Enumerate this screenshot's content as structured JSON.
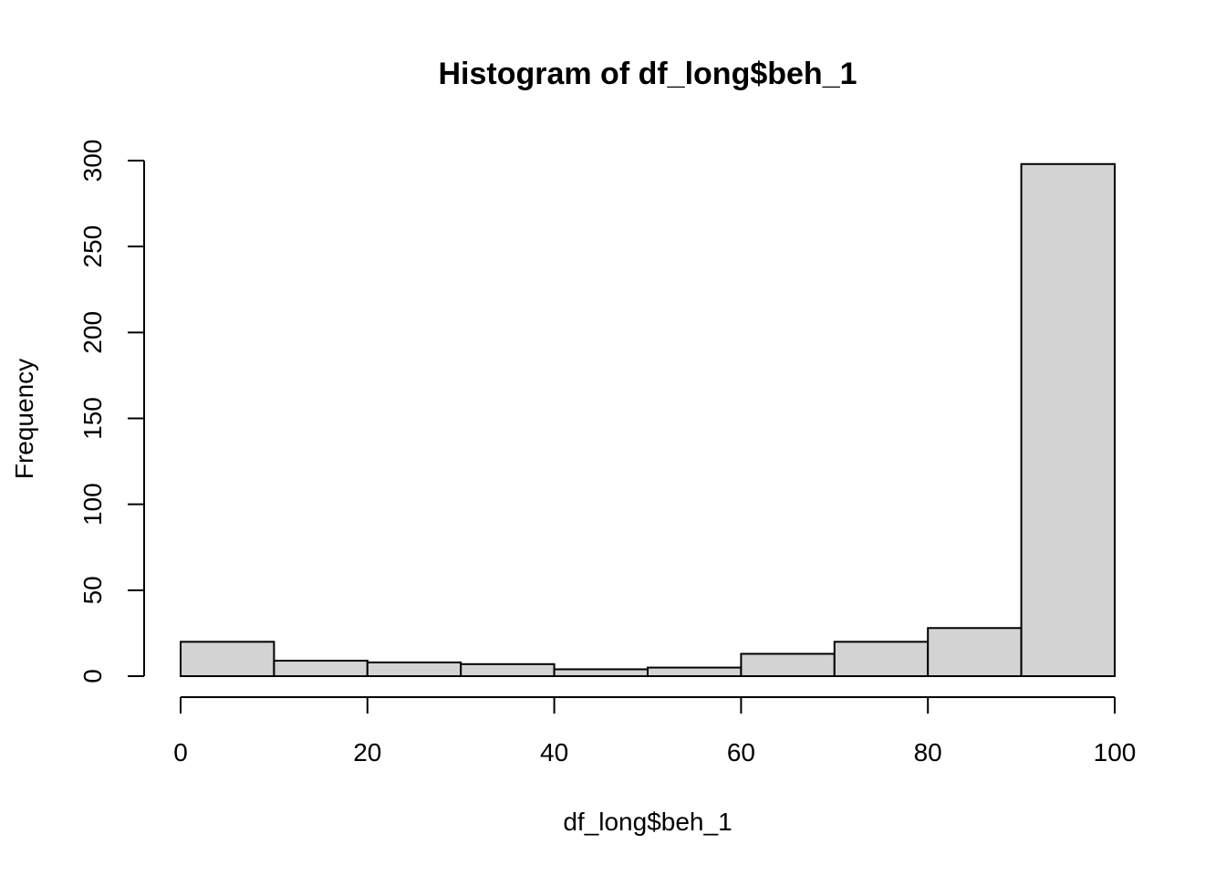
{
  "chart_data": {
    "type": "bar",
    "title": "Histogram of df_long$beh_1",
    "xlabel": "df_long$beh_1",
    "ylabel": "Frequency",
    "bin_edges": [
      0,
      10,
      20,
      30,
      40,
      50,
      60,
      70,
      80,
      90,
      100
    ],
    "values": [
      20,
      9,
      8,
      7,
      4,
      5,
      13,
      20,
      28,
      298
    ],
    "xlim": [
      0,
      100
    ],
    "ylim": [
      0,
      300
    ],
    "x_ticks": [
      0,
      20,
      40,
      60,
      80,
      100
    ],
    "y_ticks": [
      0,
      50,
      100,
      150,
      200,
      250,
      300
    ],
    "grid": false,
    "legend": "none",
    "bar_color": "#d3d3d3",
    "edge_color": "#000000"
  }
}
